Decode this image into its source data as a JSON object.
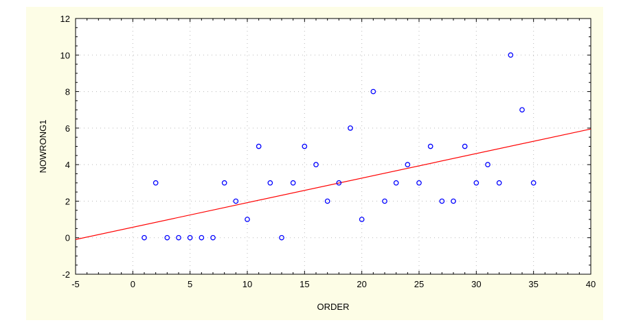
{
  "chart_data": {
    "type": "scatter",
    "xlabel": "ORDER",
    "ylabel": "NOWRONG1",
    "xlim": [
      -5,
      40
    ],
    "ylim": [
      -2,
      12
    ],
    "x_ticks": [
      -5,
      0,
      5,
      10,
      15,
      20,
      25,
      30,
      35,
      40
    ],
    "y_ticks": [
      -2,
      0,
      2,
      4,
      6,
      8,
      10,
      12
    ],
    "grid": true,
    "point_color": "#0000ff",
    "line_color": "#ff0000",
    "points": [
      {
        "x": 1,
        "y": 0
      },
      {
        "x": 2,
        "y": 3
      },
      {
        "x": 3,
        "y": 0
      },
      {
        "x": 4,
        "y": 0
      },
      {
        "x": 5,
        "y": 0
      },
      {
        "x": 6,
        "y": 0
      },
      {
        "x": 7,
        "y": 0
      },
      {
        "x": 8,
        "y": 3
      },
      {
        "x": 9,
        "y": 2
      },
      {
        "x": 10,
        "y": 1
      },
      {
        "x": 11,
        "y": 5
      },
      {
        "x": 12,
        "y": 3
      },
      {
        "x": 13,
        "y": 0
      },
      {
        "x": 14,
        "y": 3
      },
      {
        "x": 15,
        "y": 5
      },
      {
        "x": 16,
        "y": 4
      },
      {
        "x": 17,
        "y": 2
      },
      {
        "x": 18,
        "y": 3
      },
      {
        "x": 19,
        "y": 6
      },
      {
        "x": 20,
        "y": 1
      },
      {
        "x": 21,
        "y": 8
      },
      {
        "x": 22,
        "y": 2
      },
      {
        "x": 23,
        "y": 3
      },
      {
        "x": 24,
        "y": 4
      },
      {
        "x": 25,
        "y": 3
      },
      {
        "x": 26,
        "y": 5
      },
      {
        "x": 27,
        "y": 2
      },
      {
        "x": 28,
        "y": 2
      },
      {
        "x": 29,
        "y": 5
      },
      {
        "x": 30,
        "y": 3
      },
      {
        "x": 31,
        "y": 4
      },
      {
        "x": 32,
        "y": 3
      },
      {
        "x": 33,
        "y": 10
      },
      {
        "x": 34,
        "y": 7
      },
      {
        "x": 35,
        "y": 3
      }
    ],
    "fit_line": {
      "x": [
        -5,
        40
      ],
      "y": [
        -0.1,
        5.95
      ]
    }
  }
}
